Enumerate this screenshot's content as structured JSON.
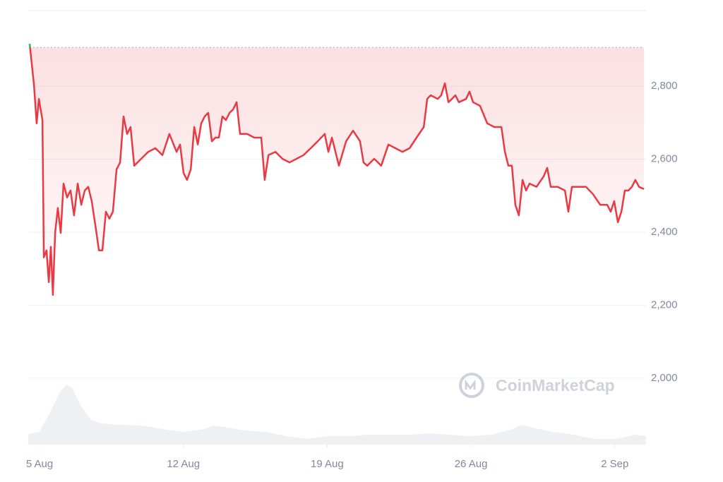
{
  "chart_data": {
    "type": "line",
    "watermark": "CoinMarketCap",
    "x": [
      -0.48,
      -0.27,
      -0.14,
      -0.03,
      0.14,
      0.21,
      0.34,
      0.45,
      0.55,
      0.65,
      0.76,
      0.89,
      1.03,
      1.17,
      1.34,
      1.51,
      1.68,
      1.86,
      2.03,
      2.2,
      2.37,
      2.54,
      2.72,
      2.89,
      3.06,
      3.23,
      3.4,
      3.57,
      3.75,
      3.92,
      4.09,
      4.26,
      4.43,
      4.61,
      4.95,
      5.29,
      5.64,
      5.98,
      6.32,
      6.67,
      6.84,
      7.01,
      7.18,
      7.36,
      7.53,
      7.7,
      7.87,
      8.04,
      8.21,
      8.39,
      8.56,
      8.73,
      8.9,
      9.07,
      9.25,
      9.42,
      9.59,
      9.76,
      10.1,
      10.45,
      10.79,
      10.96,
      11.14,
      11.48,
      11.82,
      12.17,
      12.51,
      12.85,
      13.2,
      13.54,
      13.88,
      14.06,
      14.23,
      14.57,
      14.92,
      15.26,
      15.6,
      15.77,
      15.95,
      16.29,
      16.63,
      16.98,
      17.32,
      17.66,
      18.01,
      18.35,
      18.7,
      18.87,
      19.04,
      19.38,
      19.55,
      19.73,
      19.9,
      20.07,
      20.24,
      20.41,
      20.76,
      20.93,
      21.1,
      21.44,
      21.79,
      22.13,
      22.48,
      22.65,
      22.82,
      22.99,
      23.16,
      23.33,
      23.51,
      23.68,
      23.85,
      24.19,
      24.54,
      24.71,
      24.88,
      25.22,
      25.57,
      25.74,
      25.91,
      26.26,
      26.6,
      26.94,
      27.29,
      27.63,
      27.8,
      27.97,
      28.15,
      28.32,
      28.49,
      28.66,
      28.83,
      29.0,
      29.18,
      29.42
    ],
    "series": [
      {
        "color": "#ea3943",
        "up_color": "#16c784",
        "values": [
          2916,
          2804,
          2698,
          2765,
          2707,
          2331,
          2350,
          2263,
          2360,
          2228,
          2398,
          2466,
          2398,
          2533,
          2495,
          2514,
          2446,
          2533,
          2475,
          2514,
          2524,
          2485,
          2417,
          2350,
          2350,
          2456,
          2437,
          2456,
          2572,
          2591,
          2717,
          2669,
          2688,
          2582,
          2601,
          2620,
          2630,
          2611,
          2669,
          2620,
          2640,
          2562,
          2543,
          2572,
          2688,
          2640,
          2698,
          2717,
          2727,
          2649,
          2659,
          2659,
          2717,
          2707,
          2727,
          2736,
          2756,
          2669,
          2669,
          2659,
          2659,
          2543,
          2611,
          2620,
          2601,
          2591,
          2601,
          2611,
          2630,
          2649,
          2669,
          2620,
          2659,
          2582,
          2649,
          2678,
          2649,
          2591,
          2582,
          2601,
          2582,
          2640,
          2630,
          2620,
          2630,
          2659,
          2688,
          2765,
          2775,
          2765,
          2775,
          2808,
          2756,
          2765,
          2775,
          2756,
          2765,
          2785,
          2756,
          2746,
          2698,
          2688,
          2688,
          2620,
          2582,
          2582,
          2475,
          2446,
          2543,
          2514,
          2533,
          2524,
          2553,
          2576,
          2524,
          2524,
          2514,
          2456,
          2524,
          2524,
          2524,
          2504,
          2475,
          2475,
          2456,
          2485,
          2427,
          2456,
          2514,
          2514,
          2524,
          2543,
          2524,
          2518
        ]
      }
    ],
    "baseline": 2906,
    "volume": {
      "color": "#eef0f3",
      "x": [
        -0.55,
        -0.48,
        0,
        0.5,
        1,
        1.3,
        1.6,
        2,
        2.5,
        3,
        4,
        5,
        6,
        7,
        8,
        8.5,
        9,
        10,
        11,
        12,
        13,
        14,
        15,
        16,
        17,
        18,
        19,
        20,
        21,
        22,
        23,
        23.5,
        24,
        25,
        26,
        27,
        28,
        29,
        29.52
      ],
      "values": [
        15,
        15,
        18,
        45,
        75,
        85,
        80,
        55,
        35,
        30,
        28,
        27,
        22,
        18,
        22,
        27,
        25,
        20,
        18,
        12,
        8,
        12,
        12,
        14,
        14,
        14,
        16,
        14,
        12,
        14,
        22,
        28,
        24,
        18,
        14,
        8,
        8,
        14,
        12
      ],
      "vlim": [
        0,
        100
      ]
    },
    "xlim": [
      -0.55,
      29.52
    ],
    "xticks": [
      {
        "value": 0,
        "label": "5 Aug"
      },
      {
        "value": 7,
        "label": "12 Aug"
      },
      {
        "value": 14,
        "label": "19 Aug"
      },
      {
        "value": 21,
        "label": "26 Aug"
      },
      {
        "value": 28,
        "label": "2 Sep"
      }
    ],
    "ylim": [
      1818,
      3007
    ],
    "yticks": [
      {
        "value": 2000,
        "label": "2,000"
      },
      {
        "value": 2200,
        "label": "2,200"
      },
      {
        "value": 2400,
        "label": "2,400"
      },
      {
        "value": 2600,
        "label": "2,600"
      },
      {
        "value": 2800,
        "label": "2,800"
      }
    ],
    "grid": true
  }
}
